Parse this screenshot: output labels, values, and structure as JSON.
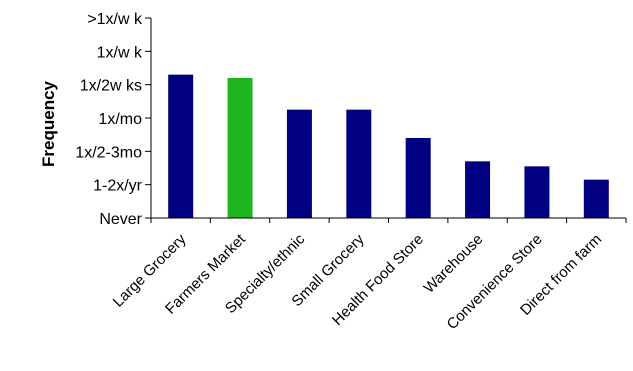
{
  "chart_data": {
    "type": "bar",
    "title": "",
    "xlabel": "",
    "ylabel": "Frequency",
    "y_categories": [
      "Never",
      "1-2x/yr",
      "1x/2-3mo",
      "1x/mo",
      "1x/2w ks",
      "1x/w k",
      ">1x/w k"
    ],
    "ylim": [
      0,
      6
    ],
    "categories": [
      "Large Grocery",
      "Farmers Market",
      "Specialty/ethnic",
      "Small Grocery",
      "Health Food Store",
      "Warehouse",
      "Convenience Store",
      "Direct from farm"
    ],
    "values": [
      4.3,
      4.2,
      3.25,
      3.25,
      2.4,
      1.7,
      1.55,
      1.15
    ],
    "colors": [
      "#000080",
      "#1fb51f",
      "#000080",
      "#000080",
      "#000080",
      "#000080",
      "#000080",
      "#000080"
    ],
    "grid": false,
    "legend": "none"
  }
}
